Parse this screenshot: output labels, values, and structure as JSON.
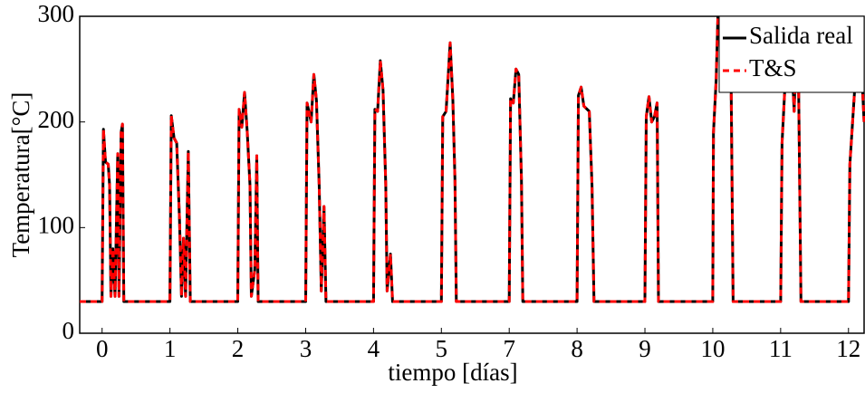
{
  "chart_data": {
    "type": "line",
    "xlabel": "tiempo [días]",
    "ylabel": "Temperatura[°C]",
    "x": [
      -0.33,
      0,
      0.02,
      0.05,
      0.09,
      0.11,
      0.13,
      0.16,
      0.19,
      0.23,
      0.25,
      0.28,
      0.3,
      0.32,
      1.0,
      1.02,
      1.06,
      1.1,
      1.14,
      1.17,
      1.2,
      1.23,
      1.27,
      1.3,
      2.0,
      2.02,
      2.06,
      2.1,
      2.14,
      2.18,
      2.2,
      2.25,
      2.28,
      2.3,
      3.0,
      3.02,
      3.08,
      3.12,
      3.16,
      3.2,
      3.23,
      3.27,
      3.3,
      4.0,
      4.02,
      4.06,
      4.1,
      4.14,
      4.18,
      4.2,
      4.25,
      4.28,
      5.0,
      5.02,
      5.07,
      5.13,
      5.17,
      5.2,
      5.22,
      6.0,
      6.02,
      6.06,
      6.1,
      6.14,
      6.18,
      6.2,
      7.0,
      7.02,
      7.06,
      7.1,
      7.18,
      7.22,
      7.25,
      8.0,
      8.02,
      8.06,
      8.1,
      8.14,
      8.18,
      8.2,
      9.0,
      9.01,
      9.05,
      9.08,
      9.26,
      9.3,
      10.0,
      10.02,
      10.06,
      10.12,
      10.2,
      10.25,
      10.3,
      11.0,
      11.02,
      11.06,
      11.12,
      11.16,
      11.2,
      11.23
    ],
    "series": [
      {
        "name": "Salida real",
        "color": "#000000",
        "dash": false,
        "values": [
          30,
          30,
          193,
          162,
          160,
          140,
          35,
          80,
          35,
          170,
          35,
          190,
          198,
          30,
          30,
          206,
          185,
          180,
          110,
          35,
          90,
          35,
          172,
          30,
          30,
          212,
          195,
          228,
          190,
          140,
          35,
          60,
          168,
          30,
          30,
          218,
          200,
          245,
          220,
          140,
          40,
          120,
          30,
          30,
          212,
          210,
          258,
          230,
          140,
          40,
          75,
          30,
          30,
          205,
          210,
          275,
          220,
          145,
          30,
          30,
          222,
          218,
          250,
          245,
          145,
          30,
          30,
          225,
          233,
          215,
          210,
          140,
          30,
          30,
          205,
          224,
          200,
          205,
          218,
          30,
          30,
          190,
          240,
          310,
          310,
          30,
          30,
          180,
          230,
          320,
          210,
          320,
          30,
          30,
          160,
          200,
          260,
          320,
          240,
          200
        ]
      },
      {
        "name": "T&S",
        "color": "#ff0000",
        "dash": true,
        "values": [
          30,
          30,
          193,
          162,
          160,
          140,
          35,
          80,
          35,
          170,
          35,
          190,
          198,
          30,
          30,
          206,
          185,
          180,
          110,
          35,
          90,
          35,
          172,
          30,
          30,
          212,
          195,
          228,
          190,
          140,
          35,
          60,
          168,
          30,
          30,
          218,
          200,
          245,
          220,
          140,
          40,
          120,
          30,
          30,
          212,
          210,
          258,
          230,
          140,
          40,
          75,
          30,
          30,
          205,
          210,
          275,
          220,
          145,
          30,
          30,
          222,
          218,
          250,
          245,
          145,
          30,
          30,
          225,
          233,
          215,
          210,
          140,
          30,
          30,
          205,
          224,
          200,
          205,
          218,
          30,
          30,
          190,
          240,
          310,
          310,
          30,
          30,
          180,
          230,
          320,
          210,
          320,
          30,
          30,
          160,
          200,
          260,
          320,
          240,
          200
        ]
      }
    ],
    "xlim": [
      -0.33,
      11.23
    ],
    "ylim": [
      0,
      300
    ],
    "xticks": [
      0,
      1,
      2,
      3,
      4,
      5,
      {
        "value": 6,
        "label": "7"
      },
      {
        "value": 7,
        "label": "8"
      },
      {
        "value": 8,
        "label": "9"
      },
      {
        "value": 9,
        "label": "10"
      },
      {
        "value": 10,
        "label": "11"
      },
      {
        "value": 11,
        "label": "12"
      }
    ],
    "yticks": [
      0,
      100,
      200,
      300
    ],
    "legend": "upper right"
  }
}
